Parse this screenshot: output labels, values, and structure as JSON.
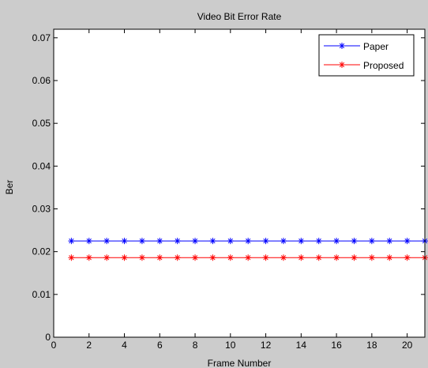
{
  "chart_data": {
    "type": "line",
    "title": "Video Bit Error Rate",
    "xlabel": "Frame Number",
    "ylabel": "Ber",
    "xlim": [
      0,
      21
    ],
    "ylim": [
      0,
      0.072
    ],
    "x_ticks": [
      "0",
      "2",
      "4",
      "6",
      "8",
      "10",
      "12",
      "14",
      "16",
      "18",
      "20"
    ],
    "y_ticks": [
      "0",
      "0.01",
      "0.02",
      "0.03",
      "0.04",
      "0.05",
      "0.06",
      "0.07"
    ],
    "x": [
      1,
      2,
      3,
      4,
      5,
      6,
      7,
      8,
      9,
      10,
      11,
      12,
      13,
      14,
      15,
      16,
      17,
      18,
      19,
      20,
      21
    ],
    "series": [
      {
        "name": "Paper",
        "color": "#0000ff",
        "marker": "asterisk",
        "values": [
          0.0225,
          0.0225,
          0.0225,
          0.0225,
          0.0225,
          0.0225,
          0.0225,
          0.0225,
          0.0225,
          0.0225,
          0.0225,
          0.0225,
          0.0225,
          0.0225,
          0.0225,
          0.0225,
          0.0225,
          0.0225,
          0.0225,
          0.0225,
          0.0225
        ]
      },
      {
        "name": "Proposed",
        "color": "#ff0000",
        "marker": "asterisk",
        "values": [
          0.0186,
          0.0186,
          0.0186,
          0.0186,
          0.0186,
          0.0186,
          0.0186,
          0.0186,
          0.0186,
          0.0186,
          0.0186,
          0.0186,
          0.0186,
          0.0186,
          0.0186,
          0.0186,
          0.0186,
          0.0186,
          0.0186,
          0.0186,
          0.0186
        ]
      }
    ],
    "grid": false,
    "legend_position": "top-right",
    "background_color": "#cccccc",
    "plot_background": "#ffffff"
  }
}
